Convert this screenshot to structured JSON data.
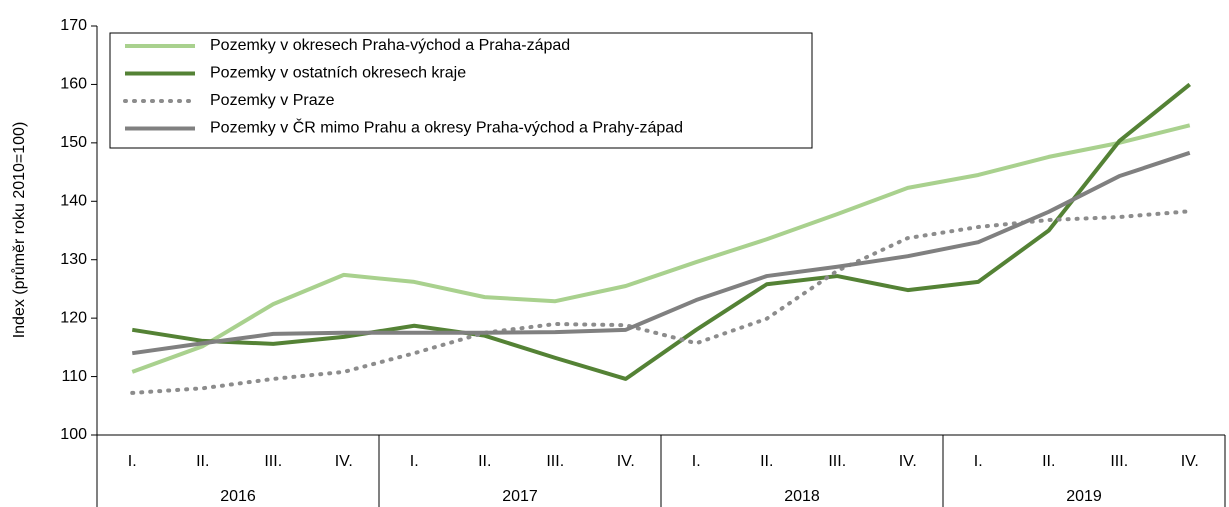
{
  "chart_data": {
    "type": "line",
    "y_label": "Index (průměr roku 2010=100)",
    "categories": [
      "I.",
      "II.",
      "III.",
      "IV.",
      "I.",
      "II.",
      "III.",
      "IV.",
      "I.",
      "II.",
      "III.",
      "IV.",
      "I.",
      "II.",
      "III.",
      "IV."
    ],
    "groups": [
      "2016",
      "2017",
      "2018",
      "2019"
    ],
    "ylim": [
      100,
      170
    ],
    "yticks": [
      100,
      110,
      120,
      130,
      140,
      150,
      160,
      170
    ],
    "legend": "upper left",
    "series": [
      {
        "name": "Pozemky v okresech Praha-východ a Praha-západ",
        "color": "#a9d18e",
        "style": "solid",
        "values": [
          110.8,
          115.2,
          122.4,
          127.4,
          126.2,
          123.6,
          122.9,
          125.5,
          129.6,
          133.5,
          137.8,
          142.3,
          144.5,
          147.6,
          150,
          153
        ]
      },
      {
        "name": "Pozemky v ostatních okresech kraje",
        "color": "#548235",
        "style": "solid",
        "values": [
          118,
          116.1,
          115.6,
          116.8,
          118.7,
          117,
          113.2,
          109.6,
          118,
          125.8,
          127.2,
          124.8,
          126.2,
          135,
          150.3,
          160
        ]
      },
      {
        "name": "Pozemky v Praze",
        "color": "#8c8c8c",
        "style": "dotted",
        "values": [
          107.2,
          108,
          109.6,
          110.8,
          114,
          117.5,
          119,
          118.8,
          115.7,
          119.9,
          128.1,
          133.7,
          135.6,
          136.8,
          137.3,
          138.3
        ]
      },
      {
        "name": "Pozemky v ČR mimo Prahu a okresy Praha-východ a Prahy-západ",
        "color": "#808080",
        "style": "solid",
        "values": [
          114,
          115.7,
          117.3,
          117.5,
          117.5,
          117.5,
          117.6,
          118,
          123.1,
          127.2,
          128.8,
          130.6,
          133,
          138.2,
          144.3,
          148.3
        ]
      }
    ]
  }
}
